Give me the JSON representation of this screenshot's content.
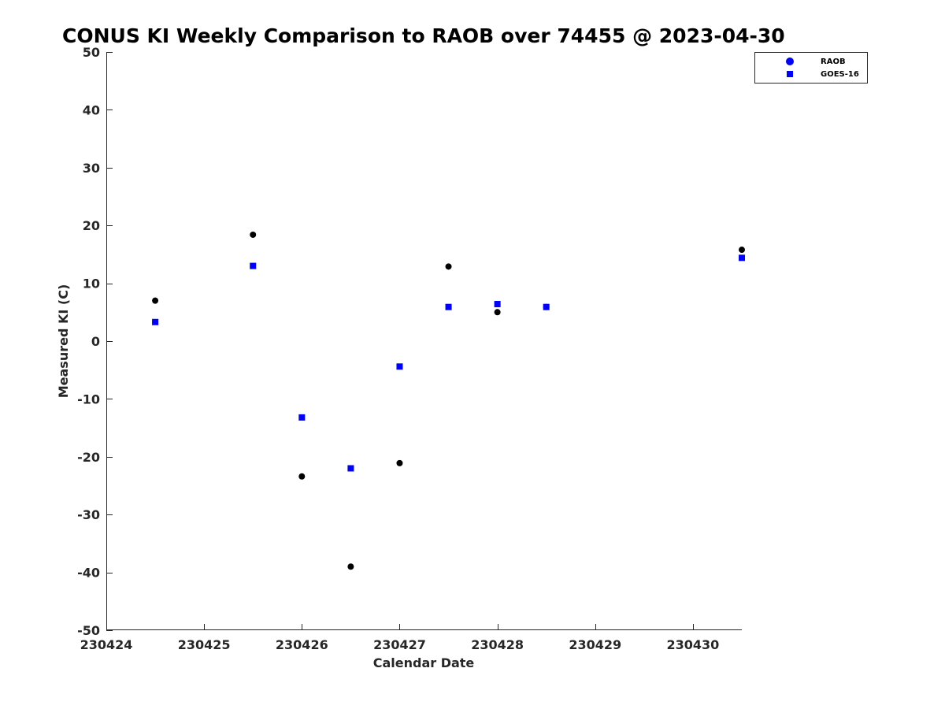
{
  "chart_data": {
    "type": "scatter",
    "title": "CONUS KI Weekly Comparison to RAOB over 74455 @ 2023-04-30",
    "xlabel": "Calendar Date",
    "ylabel": "Measured KI (C)",
    "xlim": [
      230424,
      230430.5
    ],
    "ylim": [
      -50,
      50
    ],
    "x_ticks": [
      230424,
      230425,
      230426,
      230427,
      230428,
      230429,
      230430
    ],
    "x_tick_labels": [
      "230424",
      "230425",
      "230426",
      "230427",
      "230428",
      "230429",
      "230430"
    ],
    "y_ticks": [
      -50,
      -40,
      -30,
      -20,
      -10,
      0,
      10,
      20,
      30,
      40,
      50
    ],
    "y_tick_labels": [
      "-50",
      "-40",
      "-30",
      "-20",
      "-10",
      "0",
      "10",
      "20",
      "30",
      "40",
      "50"
    ],
    "grid": false,
    "legend_position": "top-right",
    "series": [
      {
        "name": "RAOB",
        "marker": "circle",
        "color": "#000000",
        "legend_color": "#0000ff",
        "points": [
          {
            "x": 230424.5,
            "y": 7.0
          },
          {
            "x": 230425.5,
            "y": 18.4
          },
          {
            "x": 230426.0,
            "y": -23.4
          },
          {
            "x": 230426.5,
            "y": -39.0
          },
          {
            "x": 230427.0,
            "y": -21.1
          },
          {
            "x": 230427.5,
            "y": 12.9
          },
          {
            "x": 230428.0,
            "y": 5.0
          },
          {
            "x": 230428.5,
            "y": 5.9
          },
          {
            "x": 230430.5,
            "y": 15.8
          }
        ]
      },
      {
        "name": "GOES-16",
        "marker": "square",
        "color": "#0000ff",
        "legend_color": "#0000ff",
        "points": [
          {
            "x": 230424.5,
            "y": 3.3
          },
          {
            "x": 230425.5,
            "y": 13.0
          },
          {
            "x": 230426.0,
            "y": -13.2
          },
          {
            "x": 230426.5,
            "y": -22.0
          },
          {
            "x": 230427.0,
            "y": -4.4
          },
          {
            "x": 230427.5,
            "y": 5.9
          },
          {
            "x": 230428.0,
            "y": 6.4
          },
          {
            "x": 230428.5,
            "y": 5.9
          },
          {
            "x": 230430.5,
            "y": 14.4
          }
        ]
      }
    ]
  }
}
